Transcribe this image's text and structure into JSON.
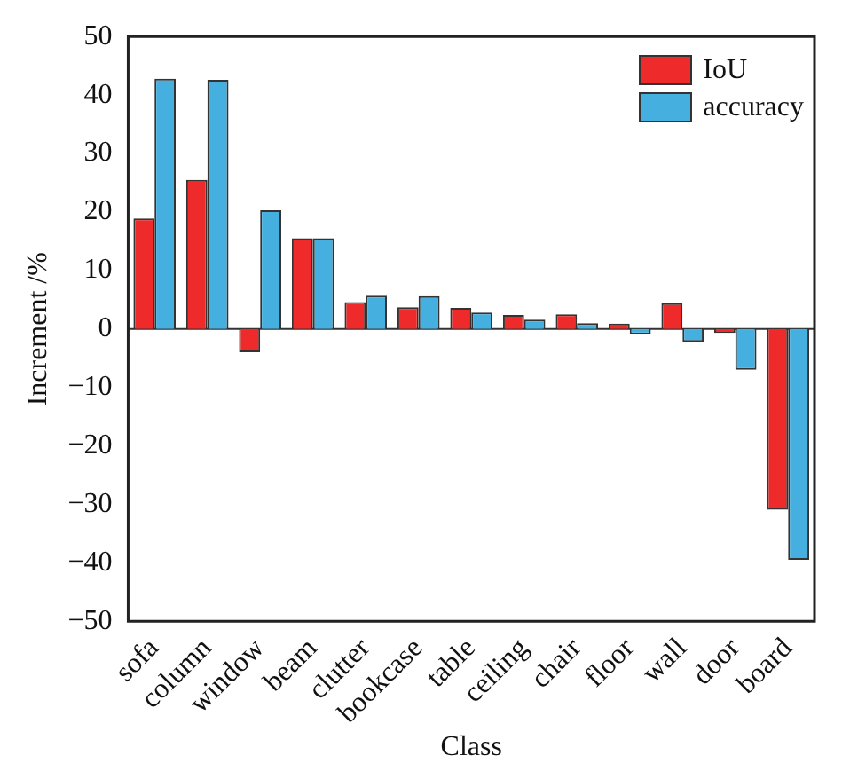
{
  "chart_data": {
    "type": "bar",
    "xlabel": "Class",
    "ylabel": "Increment /%",
    "categories": [
      "sofa",
      "column",
      "window",
      "beam",
      "clutter",
      "bookcase",
      "table",
      "ceiling",
      "chair",
      "floor",
      "wall",
      "door",
      "board"
    ],
    "series": [
      {
        "name": "IoU",
        "color": "#ee2a2a",
        "values": [
          18.9,
          25.5,
          -4.0,
          15.5,
          4.6,
          3.7,
          3.6,
          2.4,
          2.5,
          0.9,
          4.4,
          -0.7,
          -30.9
        ]
      },
      {
        "name": "accuracy",
        "color": "#45b0e0",
        "values": [
          42.8,
          42.6,
          20.3,
          15.5,
          5.7,
          5.6,
          2.8,
          1.6,
          1.0,
          -0.9,
          -2.2,
          -7.0,
          -39.5
        ]
      }
    ],
    "ylim": [
      -50,
      50
    ],
    "yticks": [
      -50,
      -40,
      -30,
      -20,
      -10,
      0,
      10,
      20,
      30,
      40,
      50
    ],
    "grid": false,
    "ref_lines": [
      {
        "axis": "y",
        "value": 0,
        "color": "#333333"
      }
    ],
    "legend": "top right"
  }
}
